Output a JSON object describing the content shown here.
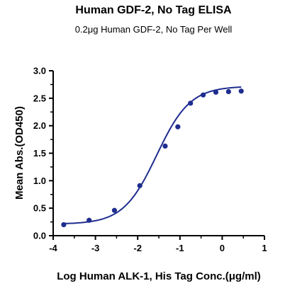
{
  "chart_data": {
    "type": "scatter",
    "title": "Human GDF-2, No Tag ELISA",
    "subtitle": "0.2μg Human GDF-2, No Tag Per Well",
    "xlabel": "Log Human ALK-1, His Tag Conc.(μg/ml)",
    "ylabel": "Mean Abs.(OD450)",
    "xlim": [
      -4,
      1
    ],
    "ylim": [
      0,
      3
    ],
    "x_ticks": [
      "-4",
      "-3",
      "-2",
      "-1",
      "0",
      "1"
    ],
    "y_ticks": [
      "0.0",
      "0.5",
      "1.0",
      "1.5",
      "2.0",
      "2.5",
      "3.0"
    ],
    "grid": false,
    "series": [
      {
        "x": [
          -3.75,
          -3.15,
          -2.55,
          -1.95,
          -1.35,
          -1.05,
          -0.75,
          -0.45,
          -0.15,
          0.15,
          0.45
        ],
        "y": [
          0.2,
          0.28,
          0.46,
          0.91,
          1.63,
          1.98,
          2.41,
          2.56,
          2.61,
          2.62,
          2.63
        ]
      }
    ],
    "fit_curve": {
      "model": "4PL",
      "bottom": 0.21,
      "top": 2.72,
      "log_ec50": -1.55,
      "hill": 1.1
    },
    "color": "#1f2d8f"
  }
}
